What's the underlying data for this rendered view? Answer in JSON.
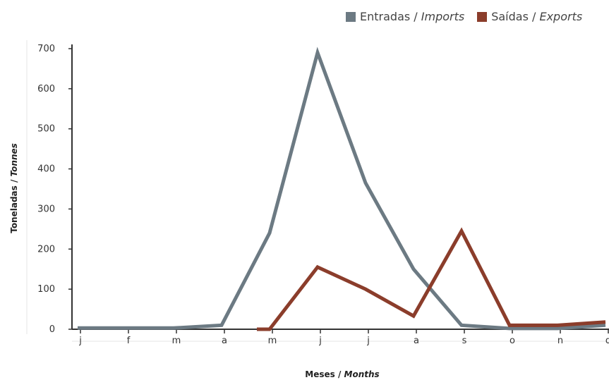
{
  "chart_data": {
    "type": "line",
    "categories": [
      "j",
      "f",
      "m",
      "a",
      "m",
      "j",
      "j",
      "a",
      "s",
      "o",
      "n",
      "d"
    ],
    "series": [
      {
        "name": "Entradas / Imports",
        "name_main": "Entradas / ",
        "name_italic": "Imports",
        "color": "#6c7a83",
        "values": [
          3,
          3,
          3,
          10,
          240,
          690,
          365,
          150,
          10,
          2,
          2,
          10
        ]
      },
      {
        "name": "Saídas / Exports",
        "name_main": "Saídas / ",
        "name_italic": "Exports",
        "color": "#8b3d2b",
        "values": [
          null,
          null,
          null,
          null,
          0,
          155,
          100,
          33,
          245,
          10,
          10,
          18
        ]
      }
    ],
    "y_ticks": [
      "0",
      "100",
      "200",
      "300",
      "400",
      "500",
      "600",
      "700"
    ],
    "ylim": [
      0,
      700
    ],
    "ylabel_main": "Toneladas / ",
    "ylabel_italic": "Tonnes",
    "xlabel_main": "Meses / ",
    "xlabel_italic": "Months",
    "legend_position": "top-right",
    "grid": false
  }
}
